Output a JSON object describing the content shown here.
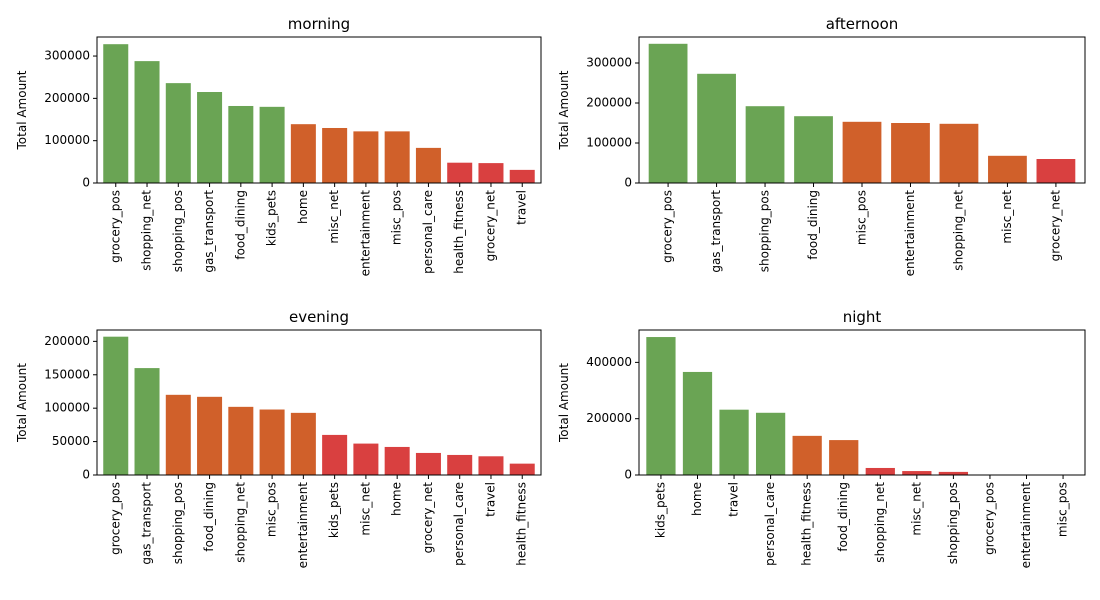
{
  "figure": {
    "background": "#ffffff"
  },
  "colors": {
    "green": "#6aa454",
    "orange": "#d0602a",
    "red": "#d94040"
  },
  "chart_data": [
    {
      "type": "bar",
      "title": "morning",
      "ylabel": "Total Amount",
      "xlabel": "",
      "ylim": [
        0,
        345000
      ],
      "yticks": [
        0,
        100000,
        200000,
        300000
      ],
      "grid": false,
      "categories": [
        "grocery_pos",
        "shopping_net",
        "shopping_pos",
        "gas_transport",
        "food_dining",
        "kids_pets",
        "home",
        "misc_net",
        "entertainment",
        "misc_pos",
        "personal_care",
        "health_fitness",
        "grocery_net",
        "travel"
      ],
      "values": [
        328000,
        288000,
        236000,
        215000,
        182000,
        180000,
        139000,
        130000,
        122000,
        122000,
        83000,
        48000,
        47000,
        31000
      ],
      "bar_colors": [
        "#6aa454",
        "#6aa454",
        "#6aa454",
        "#6aa454",
        "#6aa454",
        "#6aa454",
        "#d0602a",
        "#d0602a",
        "#d0602a",
        "#d0602a",
        "#d0602a",
        "#d94040",
        "#d94040",
        "#d94040"
      ]
    },
    {
      "type": "bar",
      "title": "afternoon",
      "ylabel": "Total Amount",
      "xlabel": "",
      "ylim": [
        0,
        365000
      ],
      "yticks": [
        0,
        100000,
        200000,
        300000
      ],
      "grid": false,
      "categories": [
        "grocery_pos",
        "gas_transport",
        "shopping_pos",
        "food_dining",
        "misc_pos",
        "entertainment",
        "shopping_net",
        "misc_net",
        "grocery_net"
      ],
      "values": [
        348000,
        273000,
        192000,
        167000,
        153000,
        150000,
        148000,
        68000,
        60000
      ],
      "bar_colors": [
        "#6aa454",
        "#6aa454",
        "#6aa454",
        "#6aa454",
        "#d0602a",
        "#d0602a",
        "#d0602a",
        "#d0602a",
        "#d94040"
      ]
    },
    {
      "type": "bar",
      "title": "evening",
      "ylabel": "Total Amount",
      "xlabel": "",
      "ylim": [
        0,
        217000
      ],
      "yticks": [
        0,
        50000,
        100000,
        150000,
        200000
      ],
      "grid": false,
      "categories": [
        "grocery_pos",
        "gas_transport",
        "shopping_pos",
        "food_dining",
        "shopping_net",
        "misc_pos",
        "entertainment",
        "kids_pets",
        "misc_net",
        "home",
        "grocery_net",
        "personal_care",
        "travel",
        "health_fitness"
      ],
      "values": [
        207000,
        160000,
        120000,
        117000,
        102000,
        98000,
        93000,
        60000,
        47000,
        42000,
        33000,
        30000,
        28000,
        17000
      ],
      "bar_colors": [
        "#6aa454",
        "#6aa454",
        "#d0602a",
        "#d0602a",
        "#d0602a",
        "#d0602a",
        "#d0602a",
        "#d94040",
        "#d94040",
        "#d94040",
        "#d94040",
        "#d94040",
        "#d94040",
        "#d94040"
      ]
    },
    {
      "type": "bar",
      "title": "night",
      "ylabel": "Total Amount",
      "xlabel": "",
      "ylim": [
        0,
        515000
      ],
      "yticks": [
        0,
        200000,
        400000
      ],
      "grid": false,
      "categories": [
        "kids_pets",
        "home",
        "travel",
        "personal_care",
        "health_fitness",
        "food_dining",
        "shopping_net",
        "misc_net",
        "shopping_pos",
        "grocery_pos",
        "entertainment",
        "misc_pos"
      ],
      "values": [
        490000,
        366000,
        232000,
        221000,
        139000,
        124000,
        25000,
        14000,
        11000,
        1500,
        800,
        500
      ],
      "bar_colors": [
        "#6aa454",
        "#6aa454",
        "#6aa454",
        "#6aa454",
        "#d0602a",
        "#d0602a",
        "#d94040",
        "#d94040",
        "#d94040",
        "#d94040",
        "#d94040",
        "#d94040"
      ]
    }
  ]
}
